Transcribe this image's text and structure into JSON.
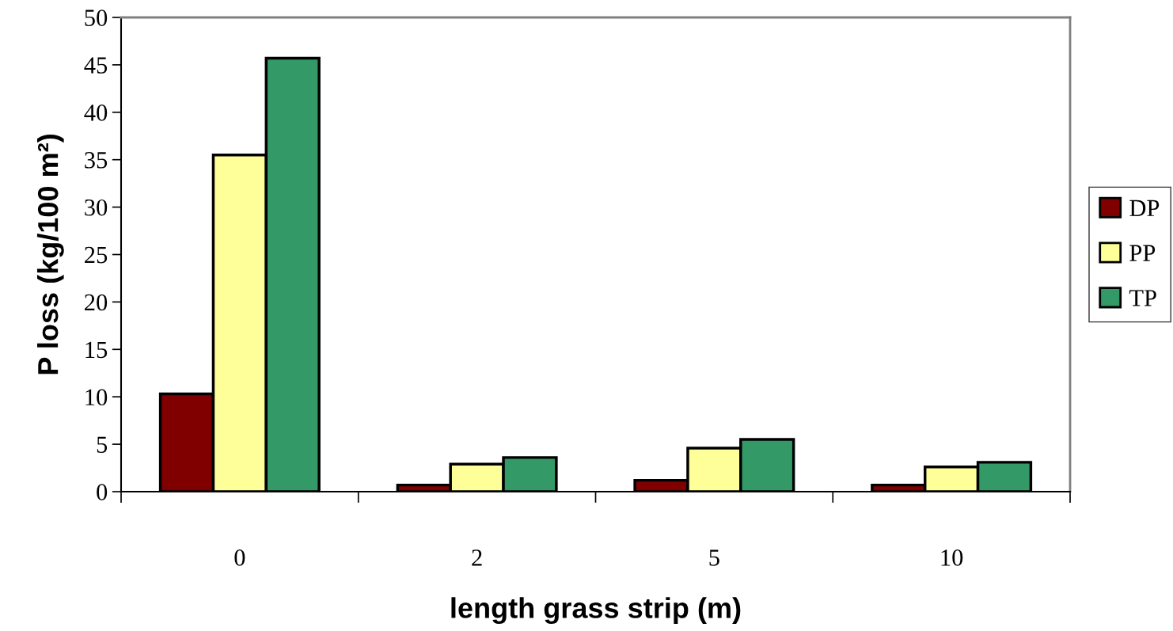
{
  "chart_data": {
    "type": "bar",
    "xlabel": "length grass strip (m)",
    "ylabel": "P loss (kg/100 m²)",
    "categories": [
      "0",
      "2",
      "5",
      "10"
    ],
    "series": [
      {
        "name": "DP",
        "color": "#800000",
        "values": [
          10.3,
          0.7,
          1.2,
          0.7
        ]
      },
      {
        "name": "PP",
        "color": "#ffff99",
        "values": [
          35.5,
          2.9,
          4.6,
          2.6
        ]
      },
      {
        "name": "TP",
        "color": "#339966",
        "values": [
          45.7,
          3.6,
          5.5,
          3.1
        ]
      }
    ],
    "ylim": [
      0,
      50
    ],
    "yticks": [
      0,
      5,
      10,
      15,
      20,
      25,
      30,
      35,
      40,
      45,
      50
    ],
    "grid": false,
    "legend": "right"
  }
}
